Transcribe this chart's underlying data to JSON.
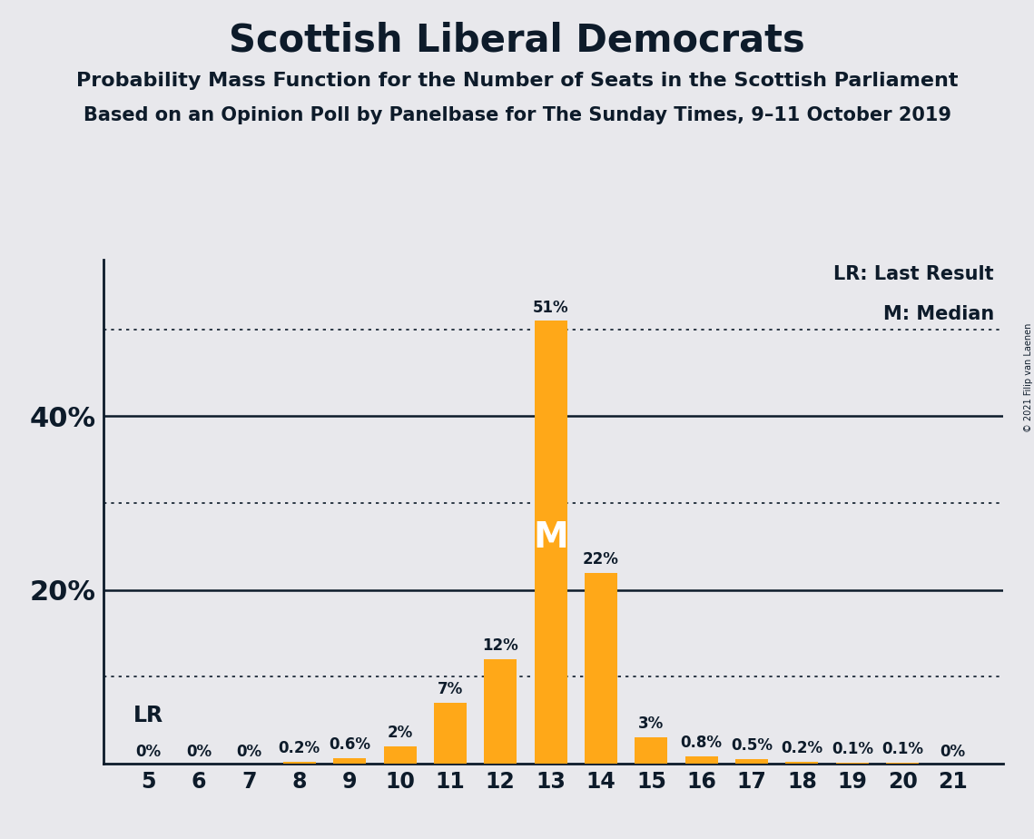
{
  "title": "Scottish Liberal Democrats",
  "subtitle1": "Probability Mass Function for the Number of Seats in the Scottish Parliament",
  "subtitle2": "Based on an Opinion Poll by Panelbase for The Sunday Times, 9–11 October 2019",
  "copyright": "© 2021 Filip van Laenen",
  "seats": [
    5,
    6,
    7,
    8,
    9,
    10,
    11,
    12,
    13,
    14,
    15,
    16,
    17,
    18,
    19,
    20,
    21
  ],
  "probabilities": [
    0.0,
    0.0,
    0.0,
    0.2,
    0.6,
    2.0,
    7.0,
    12.0,
    51.0,
    22.0,
    3.0,
    0.8,
    0.5,
    0.2,
    0.1,
    0.1,
    0.0
  ],
  "labels": [
    "0%",
    "0%",
    "0%",
    "0.2%",
    "0.6%",
    "2%",
    "7%",
    "12%",
    "51%",
    "22%",
    "3%",
    "0.8%",
    "0.5%",
    "0.2%",
    "0.1%",
    "0.1%",
    "0%"
  ],
  "bar_color": "#FFA818",
  "last_result_seat": 5,
  "median_seat": 13,
  "solid_yticks": [
    20,
    40
  ],
  "dotted_yticks": [
    10,
    30,
    50
  ],
  "ymax": 58,
  "bg_color": "#e8e8ec",
  "text_color": "#0d1b2a",
  "legend_lr": "LR: Last Result",
  "legend_m": "M: Median"
}
